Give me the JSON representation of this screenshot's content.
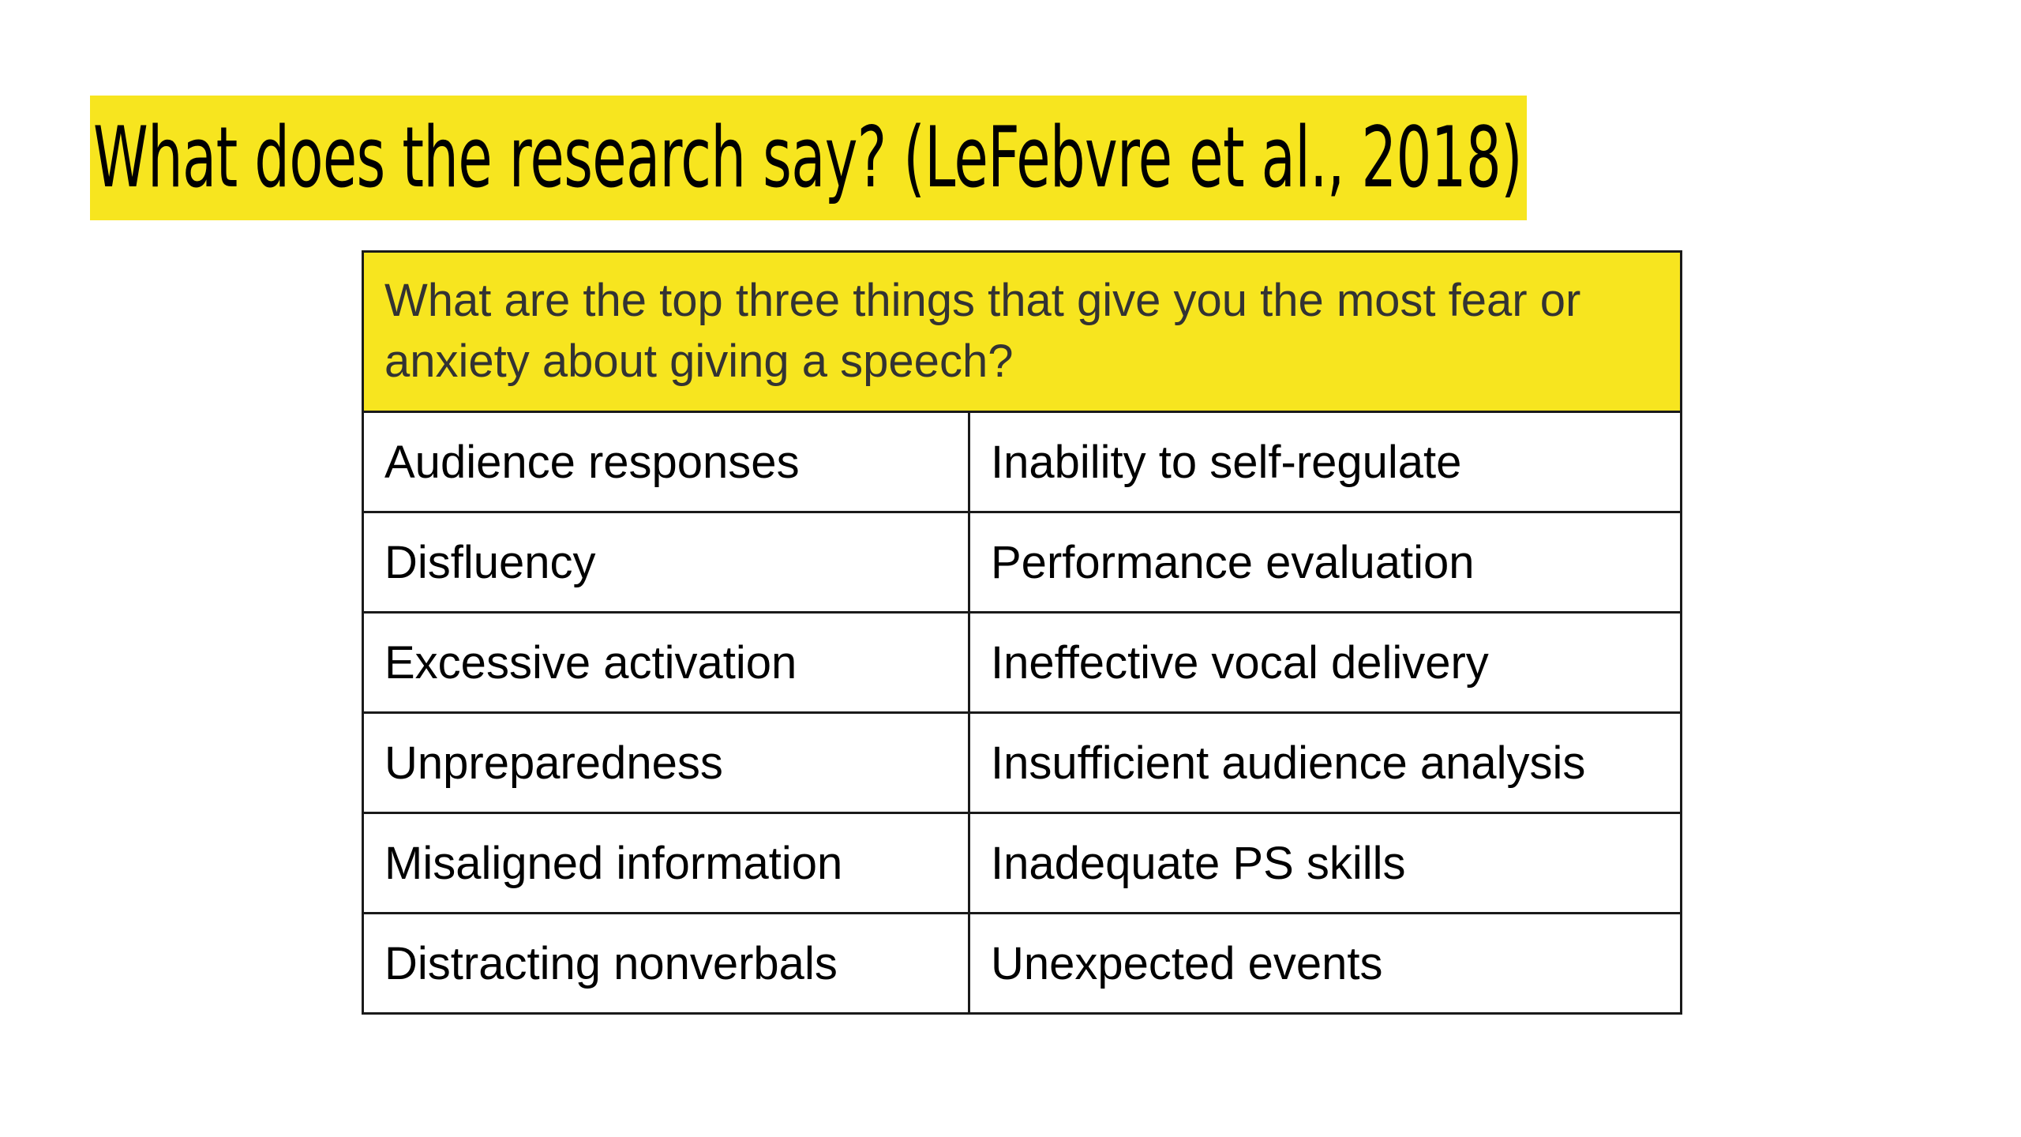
{
  "slide": {
    "title": "What does the research say? (LeFebvre et al., 2018)",
    "question": "What are the top three things that give you the most fear or anxiety about giving a speech?",
    "rows": [
      {
        "left": "Audience responses",
        "right": "Inability to self-regulate"
      },
      {
        "left": "Disfluency",
        "right": "Performance evaluation"
      },
      {
        "left": "Excessive activation",
        "right": "Ineffective vocal delivery"
      },
      {
        "left": "Unpreparedness",
        "right": "Insufficient audience analysis"
      },
      {
        "left": "Misaligned information",
        "right": "Inadequate PS skills"
      },
      {
        "left": "Distracting nonverbals",
        "right": "Unexpected events"
      }
    ]
  },
  "colors": {
    "highlight": "#f7e51f",
    "border": "#1a1a1a",
    "text": "#000000"
  }
}
